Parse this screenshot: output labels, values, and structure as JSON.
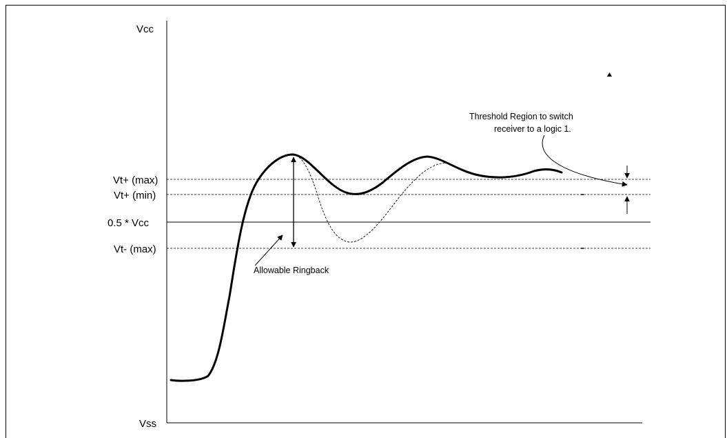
{
  "diagram": {
    "labels": {
      "vcc": "Vcc",
      "vss": "Vss",
      "vt_plus_max": "Vt+ (max)",
      "vt_plus_min": "Vt+ (min)",
      "half_vcc": "0.5 * Vcc",
      "vt_minus_max": "Vt- (max)"
    },
    "annotations": {
      "threshold_line1": "Threshold Region to switch",
      "threshold_line2": "receiver to a logic 1.",
      "ringback": "Allowable Ringback"
    },
    "colors": {
      "ink": "#000000",
      "background": "#ffffff"
    }
  }
}
